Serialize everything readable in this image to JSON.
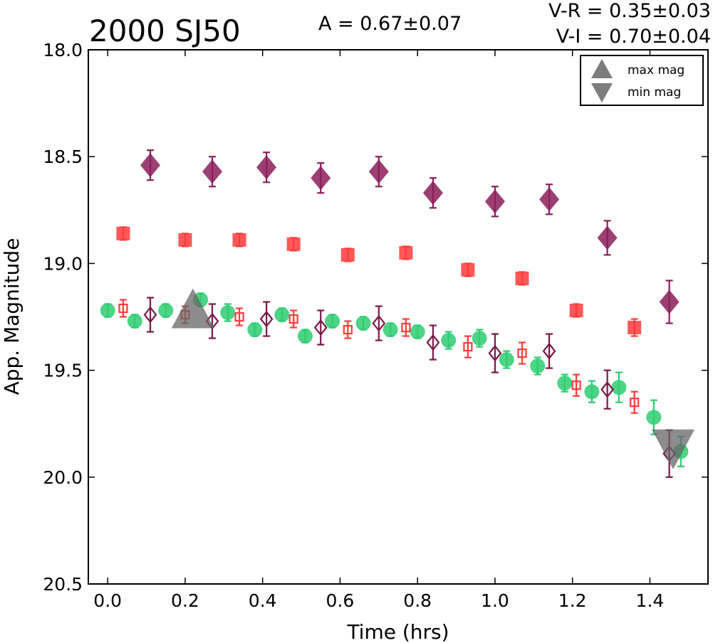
{
  "chart_data": {
    "type": "scatter",
    "title": "2000 SJ50",
    "amplitude_label": "A  = 0.67±0.07",
    "color_labels": [
      "V-R = 0.35±0.03",
      "V-I  = 0.70±0.04"
    ],
    "xlabel": "Time (hrs)",
    "ylabel": "App. Magnitude",
    "xlim": [
      -0.05,
      1.55
    ],
    "ylim": [
      20.5,
      18.0
    ],
    "y_inverted": true,
    "grid": false,
    "legend_position": "top-right",
    "xticks": [
      "0.0",
      "0.2",
      "0.4",
      "0.6",
      "0.8",
      "1.0",
      "1.2",
      "1.4"
    ],
    "xtick_values": [
      0.0,
      0.2,
      0.4,
      0.6,
      0.8,
      1.0,
      1.2,
      1.4
    ],
    "yticks": [
      "18.0",
      "18.5",
      "19.0",
      "19.5",
      "20.0",
      "20.5"
    ],
    "ytick_values": [
      18.0,
      18.5,
      19.0,
      19.5,
      20.0,
      20.5
    ],
    "legend": [
      {
        "label": "max mag",
        "marker": "triangle-up",
        "color": "#666666"
      },
      {
        "label": "min mag",
        "marker": "triangle-down",
        "color": "#666666"
      }
    ],
    "extrema_markers": [
      {
        "kind": "max",
        "x": 0.22,
        "y": 19.21,
        "color": "#666666"
      },
      {
        "kind": "min",
        "x": 1.46,
        "y": 19.87,
        "color": "#666666"
      }
    ],
    "series": [
      {
        "marker": "circle",
        "filled": true,
        "color": "#2ecc71",
        "points": [
          {
            "x": 0.0,
            "y": 19.22,
            "err": 0.03
          },
          {
            "x": 0.07,
            "y": 19.27,
            "err": 0.03
          },
          {
            "x": 0.15,
            "y": 19.22,
            "err": 0.03
          },
          {
            "x": 0.24,
            "y": 19.17,
            "err": 0.03
          },
          {
            "x": 0.31,
            "y": 19.23,
            "err": 0.04
          },
          {
            "x": 0.38,
            "y": 19.31,
            "err": 0.03
          },
          {
            "x": 0.45,
            "y": 19.24,
            "err": 0.03
          },
          {
            "x": 0.51,
            "y": 19.34,
            "err": 0.03
          },
          {
            "x": 0.58,
            "y": 19.27,
            "err": 0.03
          },
          {
            "x": 0.66,
            "y": 19.28,
            "err": 0.03
          },
          {
            "x": 0.73,
            "y": 19.31,
            "err": 0.03
          },
          {
            "x": 0.8,
            "y": 19.32,
            "err": 0.03
          },
          {
            "x": 0.88,
            "y": 19.36,
            "err": 0.04
          },
          {
            "x": 0.96,
            "y": 19.35,
            "err": 0.04
          },
          {
            "x": 1.03,
            "y": 19.45,
            "err": 0.04
          },
          {
            "x": 1.11,
            "y": 19.48,
            "err": 0.04
          },
          {
            "x": 1.18,
            "y": 19.56,
            "err": 0.04
          },
          {
            "x": 1.25,
            "y": 19.6,
            "err": 0.05
          },
          {
            "x": 1.32,
            "y": 19.58,
            "err": 0.07
          },
          {
            "x": 1.41,
            "y": 19.72,
            "err": 0.08
          },
          {
            "x": 1.48,
            "y": 19.88,
            "err": 0.07
          }
        ]
      },
      {
        "marker": "square",
        "filled": true,
        "color": "#ff3b3b",
        "points": [
          {
            "x": 0.04,
            "y": 18.86,
            "err": 0.03
          },
          {
            "x": 0.2,
            "y": 18.89,
            "err": 0.03
          },
          {
            "x": 0.34,
            "y": 18.89,
            "err": 0.03
          },
          {
            "x": 0.48,
            "y": 18.91,
            "err": 0.03
          },
          {
            "x": 0.62,
            "y": 18.96,
            "err": 0.03
          },
          {
            "x": 0.77,
            "y": 18.95,
            "err": 0.03
          },
          {
            "x": 0.93,
            "y": 19.03,
            "err": 0.03
          },
          {
            "x": 1.07,
            "y": 19.07,
            "err": 0.03
          },
          {
            "x": 1.21,
            "y": 19.22,
            "err": 0.03
          },
          {
            "x": 1.36,
            "y": 19.3,
            "err": 0.04
          }
        ]
      },
      {
        "marker": "diamond",
        "filled": true,
        "color": "#8b1f5a",
        "points": [
          {
            "x": 0.11,
            "y": 18.54,
            "err": 0.07
          },
          {
            "x": 0.27,
            "y": 18.57,
            "err": 0.07
          },
          {
            "x": 0.41,
            "y": 18.55,
            "err": 0.07
          },
          {
            "x": 0.55,
            "y": 18.6,
            "err": 0.07
          },
          {
            "x": 0.7,
            "y": 18.57,
            "err": 0.07
          },
          {
            "x": 0.84,
            "y": 18.67,
            "err": 0.07
          },
          {
            "x": 1.0,
            "y": 18.71,
            "err": 0.07
          },
          {
            "x": 1.14,
            "y": 18.7,
            "err": 0.07
          },
          {
            "x": 1.29,
            "y": 18.88,
            "err": 0.08
          },
          {
            "x": 1.45,
            "y": 19.18,
            "err": 0.1
          }
        ]
      },
      {
        "marker": "square",
        "filled": false,
        "color": "#ff3b3b",
        "points": [
          {
            "x": 0.04,
            "y": 19.21,
            "err": 0.04
          },
          {
            "x": 0.2,
            "y": 19.24,
            "err": 0.04
          },
          {
            "x": 0.34,
            "y": 19.25,
            "err": 0.04
          },
          {
            "x": 0.48,
            "y": 19.26,
            "err": 0.04
          },
          {
            "x": 0.62,
            "y": 19.31,
            "err": 0.04
          },
          {
            "x": 0.77,
            "y": 19.3,
            "err": 0.04
          },
          {
            "x": 0.93,
            "y": 19.39,
            "err": 0.05
          },
          {
            "x": 1.07,
            "y": 19.42,
            "err": 0.05
          },
          {
            "x": 1.21,
            "y": 19.57,
            "err": 0.05
          },
          {
            "x": 1.36,
            "y": 19.65,
            "err": 0.05
          }
        ]
      },
      {
        "marker": "diamond",
        "filled": false,
        "color": "#7a1848",
        "points": [
          {
            "x": 0.11,
            "y": 19.24,
            "err": 0.08
          },
          {
            "x": 0.27,
            "y": 19.27,
            "err": 0.08
          },
          {
            "x": 0.41,
            "y": 19.26,
            "err": 0.08
          },
          {
            "x": 0.55,
            "y": 19.3,
            "err": 0.08
          },
          {
            "x": 0.7,
            "y": 19.28,
            "err": 0.08
          },
          {
            "x": 0.84,
            "y": 19.37,
            "err": 0.08
          },
          {
            "x": 1.0,
            "y": 19.42,
            "err": 0.09
          },
          {
            "x": 1.14,
            "y": 19.41,
            "err": 0.08
          },
          {
            "x": 1.29,
            "y": 19.59,
            "err": 0.09
          },
          {
            "x": 1.45,
            "y": 19.89,
            "err": 0.11
          }
        ]
      }
    ]
  }
}
